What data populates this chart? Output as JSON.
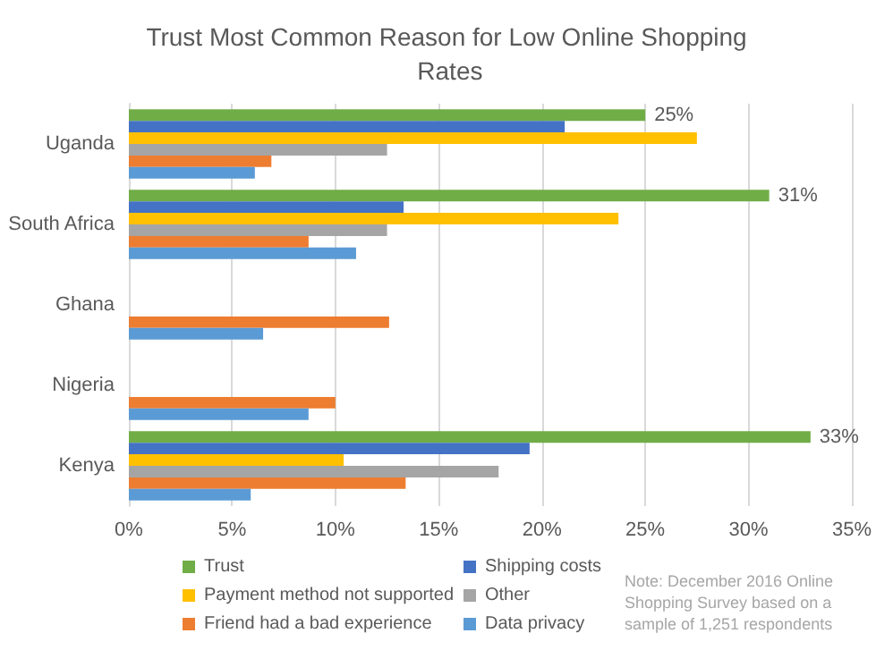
{
  "chart_data": {
    "type": "bar",
    "orientation": "horizontal",
    "title": "Trust Most Common Reason for Low Online Shopping Rates",
    "categories": [
      "Uganda",
      "South Africa",
      "Ghana",
      "Nigeria",
      "Kenya"
    ],
    "series": [
      {
        "name": "Trust",
        "color": "#70ad47",
        "values": [
          25,
          31,
          null,
          null,
          33
        ],
        "value_labels": [
          "25%",
          "31%",
          null,
          null,
          "33%"
        ]
      },
      {
        "name": "Shipping costs",
        "color": "#4472c4",
        "values": [
          21.1,
          13.3,
          null,
          null,
          19.4
        ]
      },
      {
        "name": "Payment method not supported",
        "color": "#ffc000",
        "values": [
          27.5,
          23.7,
          null,
          null,
          10.4
        ]
      },
      {
        "name": "Other",
        "color": "#a5a5a5",
        "values": [
          12.5,
          12.5,
          null,
          null,
          17.9
        ]
      },
      {
        "name": "Friend had a bad experience",
        "color": "#ed7d31",
        "values": [
          6.9,
          8.7,
          12.6,
          10,
          13.4
        ]
      },
      {
        "name": "Data privacy",
        "color": "#5b9bd5",
        "values": [
          6.1,
          11,
          6.5,
          8.7,
          5.9
        ]
      }
    ],
    "xlim": [
      0,
      35
    ],
    "xticks": [
      {
        "value": 0,
        "label": "0%"
      },
      {
        "value": 5,
        "label": "5%"
      },
      {
        "value": 10,
        "label": "10%"
      },
      {
        "value": 15,
        "label": "15%"
      },
      {
        "value": 20,
        "label": "20%"
      },
      {
        "value": 25,
        "label": "25%"
      },
      {
        "value": 30,
        "label": "30%"
      },
      {
        "value": 35,
        "label": "35%"
      }
    ],
    "grid": "x",
    "legend": "bottom",
    "annotations": [
      "Note: December 2016 Online Shopping Survey based on a sample of 1,251 respondents"
    ]
  }
}
